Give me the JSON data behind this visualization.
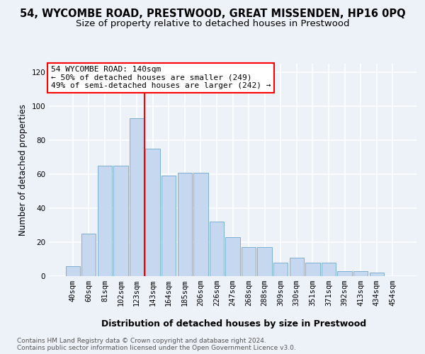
{
  "title": "54, WYCOMBE ROAD, PRESTWOOD, GREAT MISSENDEN, HP16 0PQ",
  "subtitle": "Size of property relative to detached houses in Prestwood",
  "xlabel": "Distribution of detached houses by size in Prestwood",
  "ylabel": "Number of detached properties",
  "categories": [
    "40sqm",
    "60sqm",
    "81sqm",
    "102sqm",
    "123sqm",
    "143sqm",
    "164sqm",
    "185sqm",
    "206sqm",
    "226sqm",
    "247sqm",
    "268sqm",
    "288sqm",
    "309sqm",
    "330sqm",
    "351sqm",
    "371sqm",
    "392sqm",
    "413sqm",
    "434sqm",
    "454sqm"
  ],
  "values": [
    6,
    25,
    65,
    65,
    93,
    75,
    59,
    61,
    61,
    32,
    23,
    17,
    17,
    8,
    11,
    8,
    8,
    3,
    3,
    2,
    0
  ],
  "bar_color": "#c5d8ef",
  "bar_edge_color": "#7bafd4",
  "red_line_x": 4.5,
  "annotation_title": "54 WYCOMBE ROAD: 140sqm",
  "annotation_line1": "← 50% of detached houses are smaller (249)",
  "annotation_line2": "49% of semi-detached houses are larger (242) →",
  "ylim": [
    0,
    125
  ],
  "yticks": [
    0,
    20,
    40,
    60,
    80,
    100,
    120
  ],
  "background_color": "#edf1f8",
  "grid_color": "#ffffff",
  "title_fontsize": 10.5,
  "subtitle_fontsize": 9.5,
  "xlabel_fontsize": 9,
  "ylabel_fontsize": 8.5,
  "tick_fontsize": 7.5,
  "annotation_fontsize": 8,
  "footer_fontsize": 6.5,
  "footer1": "Contains HM Land Registry data © Crown copyright and database right 2024.",
  "footer2": "Contains public sector information licensed under the Open Government Licence v3.0."
}
